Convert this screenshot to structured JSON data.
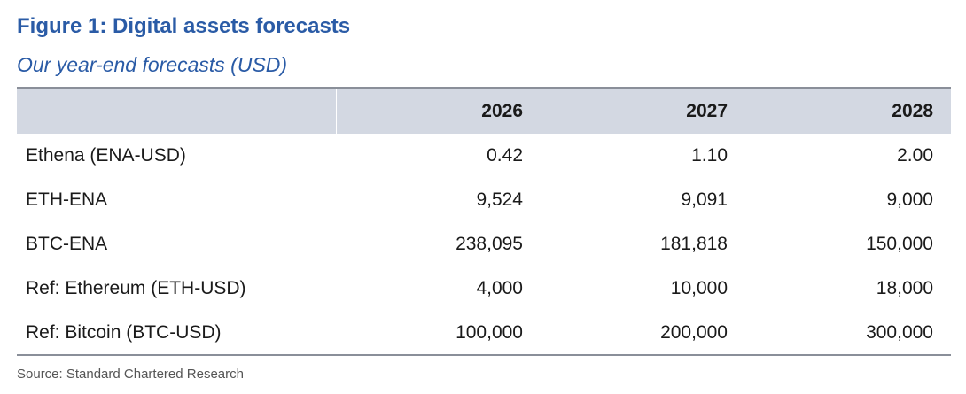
{
  "figure": {
    "title": "Figure 1: Digital assets forecasts",
    "subtitle": "Our year-end forecasts (USD)",
    "source": "Source: Standard Chartered Research"
  },
  "table": {
    "headers": [
      "",
      "2026",
      "2027",
      "2028"
    ],
    "rows": [
      {
        "label": "Ethena (ENA-USD)",
        "values": [
          "0.42",
          "1.10",
          "2.00"
        ]
      },
      {
        "label": "ETH-ENA",
        "values": [
          "9,524",
          "9,091",
          "9,000"
        ]
      },
      {
        "label": "BTC-ENA",
        "values": [
          "238,095",
          "181,818",
          "150,000"
        ]
      },
      {
        "label": "Ref: Ethereum (ETH-USD)",
        "values": [
          "4,000",
          "10,000",
          "18,000"
        ]
      },
      {
        "label": "Ref: Bitcoin (BTC-USD)",
        "values": [
          "100,000",
          "200,000",
          "300,000"
        ]
      }
    ]
  },
  "colors": {
    "title": "#2a5ba6",
    "header_bg": "#d3d8e2",
    "rule": "#8a8f99"
  }
}
